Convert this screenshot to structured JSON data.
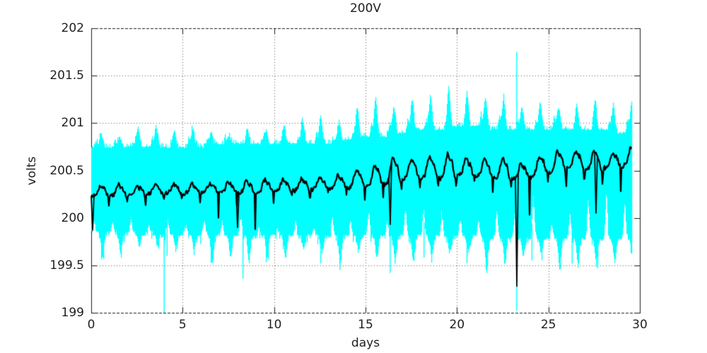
{
  "window": {
    "background": "#ffffff"
  },
  "chart_data": {
    "type": "line",
    "title": "200V",
    "xlabel": "days",
    "ylabel": "volts",
    "xlim": [
      0,
      30
    ],
    "ylim": [
      199,
      202
    ],
    "xticks": [
      0,
      5,
      10,
      15,
      20,
      25,
      30
    ],
    "yticks": [
      199,
      199.5,
      200,
      200.5,
      201,
      201.5,
      202
    ],
    "grid": "dotted",
    "legend": "none",
    "colors": {
      "band": "#00ffff",
      "mean_line": "#000000",
      "grid": "#606060",
      "border": "#1c1c1c",
      "text": "#1f1f1f"
    },
    "data_start_day": 0,
    "data_end_day": 29.55,
    "series": [
      {
        "name": "min-max envelope",
        "type": "band",
        "color": "#00ffff",
        "top_core": [
          [
            0,
            200.75
          ],
          [
            5,
            200.76
          ],
          [
            10,
            200.78
          ],
          [
            13,
            200.8
          ],
          [
            15,
            200.85
          ],
          [
            17,
            200.9
          ],
          [
            19,
            200.95
          ],
          [
            21,
            200.96
          ],
          [
            23,
            200.93
          ],
          [
            25,
            200.95
          ],
          [
            27,
            200.93
          ],
          [
            29.55,
            200.9
          ]
        ],
        "bottom_core": [
          [
            0,
            199.84
          ],
          [
            5,
            199.83
          ],
          [
            10,
            199.82
          ],
          [
            15,
            199.81
          ],
          [
            20,
            199.8
          ],
          [
            25,
            199.79
          ],
          [
            29.55,
            199.78
          ]
        ],
        "top_spike_amp": [
          [
            0,
            0.15
          ],
          [
            5,
            0.18
          ],
          [
            10,
            0.2
          ],
          [
            13,
            0.25
          ],
          [
            15,
            0.32
          ],
          [
            17,
            0.36
          ],
          [
            19,
            0.38
          ],
          [
            21,
            0.36
          ],
          [
            23,
            0.3
          ],
          [
            25,
            0.3
          ],
          [
            27,
            0.32
          ],
          [
            29.55,
            0.33
          ]
        ],
        "bottom_spike_amp": [
          [
            0,
            0.25
          ],
          [
            5,
            0.28
          ],
          [
            10,
            0.28
          ],
          [
            15,
            0.33
          ],
          [
            20,
            0.32
          ],
          [
            25,
            0.3
          ],
          [
            29.55,
            0.3
          ]
        ],
        "bottom_retract_amp": [
          [
            0,
            0.14
          ],
          [
            10,
            0.18
          ],
          [
            15,
            0.22
          ],
          [
            20,
            0.3
          ],
          [
            25,
            0.4
          ],
          [
            29.55,
            0.42
          ]
        ],
        "down_spikes": [
          [
            3.99,
            199.0
          ],
          [
            4.15,
            199.6
          ],
          [
            8.3,
            199.36
          ],
          [
            12.55,
            199.52
          ],
          [
            13.6,
            199.45
          ],
          [
            16.35,
            199.42
          ],
          [
            16.62,
            199.52
          ],
          [
            18.2,
            199.58
          ],
          [
            20.55,
            199.52
          ],
          [
            23.27,
            199.02
          ],
          [
            24.1,
            199.55
          ],
          [
            26.3,
            199.52
          ],
          [
            27.7,
            199.47
          ]
        ],
        "up_spikes": [
          [
            23.27,
            201.75
          ]
        ]
      },
      {
        "name": "mean voltage",
        "type": "line",
        "color": "#000000",
        "base": [
          [
            0,
            200.27
          ],
          [
            4,
            200.29
          ],
          [
            8,
            200.31
          ],
          [
            12,
            200.34
          ],
          [
            14,
            200.38
          ],
          [
            15.5,
            200.42
          ],
          [
            16.5,
            200.48
          ],
          [
            18,
            200.5
          ],
          [
            20,
            200.52
          ],
          [
            22,
            200.5
          ],
          [
            23.5,
            200.47
          ],
          [
            25,
            200.56
          ],
          [
            26.5,
            200.6
          ],
          [
            28,
            200.58
          ],
          [
            29.55,
            200.63
          ]
        ],
        "daily_amp": [
          [
            0,
            0.1
          ],
          [
            8,
            0.11
          ],
          [
            12,
            0.13
          ],
          [
            14,
            0.16
          ],
          [
            16,
            0.22
          ],
          [
            18,
            0.22
          ],
          [
            20,
            0.22
          ],
          [
            23,
            0.18
          ],
          [
            25,
            0.2
          ],
          [
            27,
            0.18
          ],
          [
            29.55,
            0.17
          ]
        ],
        "dips": [
          [
            0.08,
            199.87
          ],
          [
            8.0,
            199.9
          ],
          [
            16.35,
            199.93
          ],
          [
            23.28,
            199.28
          ],
          [
            27.62,
            200.05
          ]
        ]
      }
    ]
  }
}
